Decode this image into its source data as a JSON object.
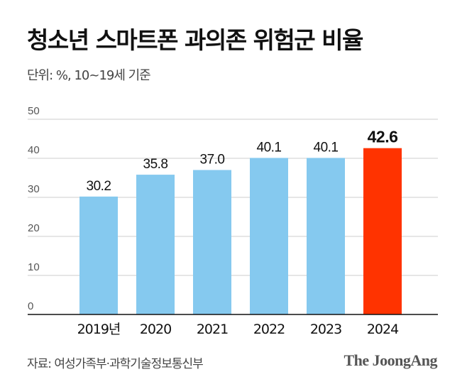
{
  "chart_data": {
    "type": "bar",
    "title": "청소년 스마트폰 과의존 위험군 비율",
    "subtitle": "단위: %, 10~19세 기준",
    "categories": [
      "2019년",
      "2020",
      "2021",
      "2022",
      "2023",
      "2024"
    ],
    "values": [
      30.2,
      35.8,
      37.0,
      40.1,
      40.1,
      42.6
    ],
    "value_labels": [
      "30.2",
      "35.8",
      "37.0",
      "40.1",
      "40.1",
      "42.6"
    ],
    "ylim": [
      0,
      50
    ],
    "yticks": [
      0,
      10,
      20,
      30,
      40,
      50
    ],
    "grid": true,
    "colors": {
      "default": "#85C9EF",
      "highlight": "#FF3300"
    },
    "highlight_index": 5
  },
  "source": "자료: 여성가족부·과학기술정보통신부",
  "logo": "The JoongAng"
}
